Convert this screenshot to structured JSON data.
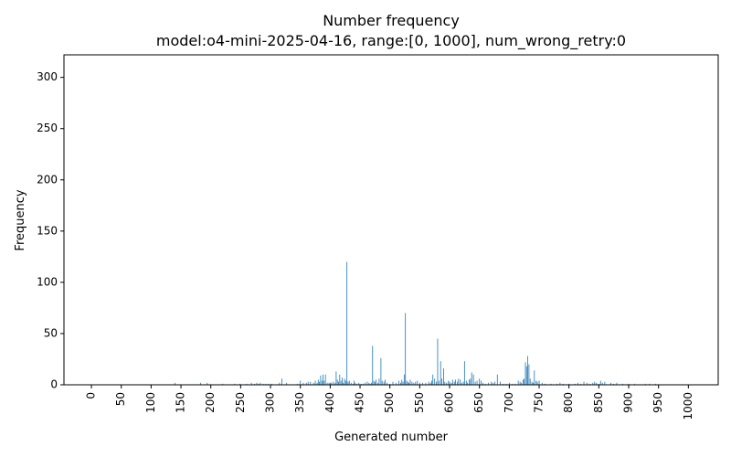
{
  "chart_data": {
    "type": "bar",
    "title": "Number frequency",
    "subtitle": "model:o4-mini-2025-04-16, range:[0, 1000], num_wrong_retry:0",
    "xlabel": "Generated number",
    "ylabel": "Frequency",
    "xlim": [
      -46,
      1050
    ],
    "ylim": [
      0,
      322
    ],
    "x_ticks": [
      "0",
      "50",
      "100",
      "150",
      "200",
      "250",
      "300",
      "350",
      "400",
      "450",
      "500",
      "550",
      "600",
      "650",
      "700",
      "750",
      "800",
      "850",
      "900",
      "950",
      "1000"
    ],
    "y_ticks": [
      "0",
      "50",
      "100",
      "150",
      "200",
      "250",
      "300"
    ],
    "bar_color": "#1f77b4",
    "grid": false,
    "x": [
      140,
      183,
      194,
      220,
      240,
      249,
      260,
      268,
      273,
      277,
      280,
      283,
      288,
      292,
      296,
      302,
      315,
      319,
      327,
      345,
      350,
      355,
      360,
      363,
      367,
      372,
      375,
      378,
      380,
      382,
      384,
      386,
      388,
      390,
      392,
      395,
      398,
      400,
      402,
      405,
      408,
      410,
      412,
      414,
      416,
      418,
      420,
      422,
      424,
      426,
      428,
      430,
      432,
      435,
      438,
      440,
      442,
      445,
      448,
      452,
      455,
      458,
      462,
      465,
      467,
      469,
      471,
      473,
      475,
      477,
      480,
      482,
      485,
      487,
      490,
      492,
      495,
      500,
      505,
      510,
      515,
      518,
      520,
      522,
      524,
      526,
      528,
      530,
      532,
      534,
      537,
      540,
      543,
      546,
      550,
      555,
      560,
      565,
      568,
      570,
      572,
      575,
      578,
      580,
      582,
      585,
      587,
      590,
      592,
      595,
      598,
      600,
      603,
      605,
      608,
      610,
      613,
      615,
      618,
      620,
      623,
      625,
      628,
      630,
      633,
      635,
      637,
      640,
      643,
      646,
      650,
      653,
      656,
      660,
      665,
      670,
      673,
      676,
      680,
      685,
      690,
      695,
      700,
      705,
      710,
      715,
      718,
      720,
      723,
      725,
      727,
      729,
      731,
      733,
      735,
      738,
      740,
      742,
      745,
      747,
      750,
      755,
      760,
      770,
      780,
      785,
      790,
      800,
      810,
      815,
      820,
      825,
      830,
      835,
      840,
      843,
      846,
      850,
      853,
      856,
      860,
      870,
      875,
      880,
      890,
      900,
      910,
      928,
      935,
      945
    ],
    "values": [
      2,
      2,
      2,
      1,
      1,
      1,
      1,
      2,
      1,
      2,
      1,
      2,
      1,
      1,
      1,
      1,
      2,
      6,
      2,
      1,
      4,
      2,
      2,
      3,
      3,
      2,
      4,
      2,
      5,
      3,
      9,
      4,
      10,
      4,
      10,
      2,
      2,
      2,
      2,
      3,
      2,
      13,
      5,
      3,
      10,
      4,
      7,
      2,
      6,
      4,
      120,
      3,
      4,
      2,
      1,
      4,
      2,
      1,
      2,
      1,
      1,
      2,
      3,
      2,
      1,
      2,
      38,
      4,
      3,
      5,
      2,
      6,
      26,
      4,
      3,
      5,
      2,
      1,
      3,
      2,
      4,
      2,
      5,
      3,
      10,
      70,
      4,
      3,
      2,
      5,
      3,
      2,
      3,
      4,
      2,
      2,
      2,
      3,
      2,
      4,
      10,
      6,
      3,
      45,
      4,
      23,
      6,
      16,
      3,
      2,
      4,
      3,
      2,
      5,
      3,
      5,
      3,
      6,
      5,
      2,
      3,
      23,
      4,
      2,
      5,
      6,
      12,
      10,
      3,
      4,
      6,
      4,
      2,
      1,
      2,
      3,
      2,
      3,
      10,
      3,
      1,
      1,
      2,
      1,
      1,
      4,
      3,
      2,
      5,
      6,
      22,
      18,
      28,
      20,
      6,
      3,
      2,
      14,
      4,
      3,
      4,
      2,
      1,
      1,
      1,
      2,
      1,
      1,
      1,
      2,
      1,
      3,
      2,
      1,
      2,
      3,
      2,
      1,
      4,
      2,
      3,
      2,
      1,
      2,
      1,
      1,
      1,
      1,
      1,
      1
    ]
  }
}
